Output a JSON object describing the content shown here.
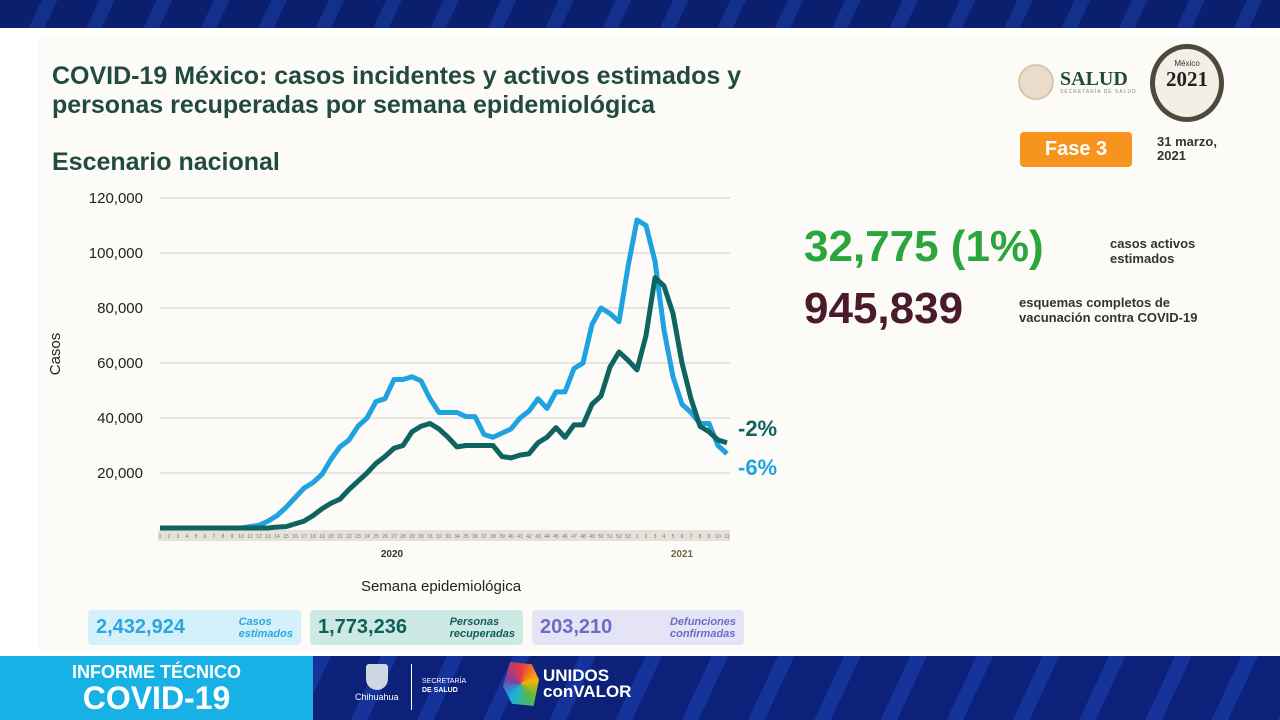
{
  "header": {
    "title_line1": "COVID-19 México: casos incidentes y activos estimados y",
    "title_line2": "personas recuperadas por semana epidemiológica",
    "subtitle": "Escenario nacional",
    "salud_logo": "SALUD",
    "salud_sub": "SECRETARÍA DE SALUD",
    "logo_2021": {
      "top": "México",
      "year": "2021"
    },
    "phase": "Fase 3",
    "date_line1": "31 marzo,",
    "date_line2": "2021",
    "colors": {
      "title": "#234a3f",
      "phase_bg": "#f7941d"
    }
  },
  "highlights": {
    "active_value": "32,775 (1%)",
    "active_label_line1": "casos activos",
    "active_label_line2": "estimados",
    "vaccine_value": "945,839",
    "vaccine_label_line1": "esquemas completos de",
    "vaccine_label_line2": "vacunación contra COVID-19",
    "colors": {
      "active": "#2aa63c",
      "vaccine": "#4a1b2a"
    }
  },
  "summary_boxes": [
    {
      "value": "2,432,924",
      "label_line1": "Casos",
      "label_line2": "estimados",
      "color": "#2aa7de",
      "bg": "#d3f0fb"
    },
    {
      "value": "1,773,236",
      "label_line1": "Personas",
      "label_line2": "recuperadas",
      "color": "#0f5e5a",
      "bg": "#cde9e4"
    },
    {
      "value": "203,210",
      "label_line1": "Defunciones",
      "label_line2": "confirmadas",
      "color": "#6e6bc6",
      "bg": "#e5e4f6"
    }
  ],
  "chart_data": {
    "type": "line",
    "ylabel": "Casos",
    "xlabel": "Semana epidemiológica",
    "ylim": [
      0,
      120000
    ],
    "yticks": [
      20000,
      40000,
      60000,
      80000,
      100000,
      120000
    ],
    "ytick_labels": [
      "20,000",
      "40,000",
      "60,000",
      "80,000",
      "100,000",
      "120,000"
    ],
    "grid": true,
    "year_labels": [
      "2020",
      "2021"
    ],
    "x": [
      "1",
      "2",
      "3",
      "4",
      "5",
      "6",
      "7",
      "8",
      "9",
      "10",
      "11",
      "12",
      "13",
      "14",
      "15",
      "16",
      "17",
      "18",
      "19",
      "20",
      "21",
      "22",
      "23",
      "24",
      "25",
      "26",
      "27",
      "28",
      "29",
      "30",
      "31",
      "32",
      "33",
      "34",
      "35",
      "36",
      "37",
      "38",
      "39",
      "40",
      "41",
      "42",
      "43",
      "44",
      "45",
      "46",
      "47",
      "48",
      "49",
      "50",
      "51",
      "52",
      "53",
      "1",
      "2",
      "3",
      "4",
      "5",
      "6",
      "7",
      "8",
      "9",
      "10",
      "11"
    ],
    "series": [
      {
        "color": "#1fa3e0",
        "end_label": "-6%",
        "values": [
          0,
          0,
          0,
          0,
          0,
          0,
          0,
          0,
          0,
          0,
          500,
          1000,
          2500,
          4500,
          7500,
          11000,
          14500,
          16500,
          19500,
          25000,
          29500,
          32000,
          37000,
          40000,
          46000,
          47000,
          54000,
          54000,
          55000,
          53500,
          47000,
          42000,
          42000,
          42000,
          40500,
          40500,
          34000,
          33000,
          34500,
          36000,
          40000,
          42500,
          47000,
          43500,
          49500,
          49500,
          58000,
          60000,
          74000,
          80000,
          78000,
          75000,
          95000,
          112000,
          110000,
          97000,
          72000,
          55000,
          45000,
          42000,
          38000,
          38000,
          30000,
          27000
        ]
      },
      {
        "color": "#0f6460",
        "end_label": "-2%",
        "values": [
          0,
          0,
          0,
          0,
          0,
          0,
          0,
          0,
          0,
          0,
          0,
          0,
          0,
          300,
          500,
          1500,
          2500,
          4500,
          7000,
          9000,
          10500,
          14000,
          17000,
          20000,
          23500,
          26000,
          29000,
          30000,
          35000,
          37000,
          38000,
          36000,
          33000,
          29500,
          30000,
          30000,
          30000,
          30000,
          26000,
          25500,
          26500,
          27000,
          31000,
          33000,
          36500,
          33000,
          37500,
          37500,
          45000,
          48000,
          58500,
          64000,
          61000,
          57500,
          70000,
          91000,
          88000,
          78000,
          60000,
          47000,
          37000,
          35000,
          32000,
          31000
        ]
      }
    ]
  },
  "footer": {
    "informe_line1": "INFORME TÉCNICO",
    "informe_line2": "COVID-19",
    "chihuahua": "Chihuahua",
    "secretaria_line1": "SECRETARÍA",
    "secretaria_line2": "DE SALUD",
    "unidos_line1": "UNIDOS",
    "unidos_line2": "conVALOR"
  }
}
